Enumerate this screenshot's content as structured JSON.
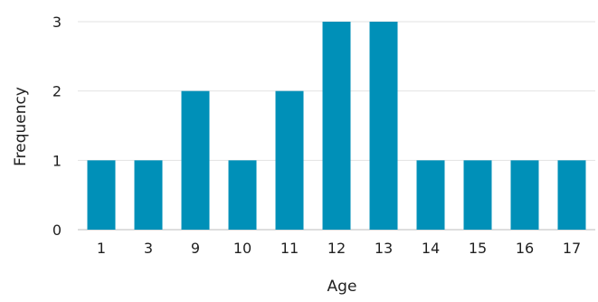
{
  "chart_data": {
    "type": "bar",
    "title": "",
    "xlabel": "Age",
    "ylabel": "Frequency",
    "categories": [
      "1",
      "3",
      "9",
      "10",
      "11",
      "12",
      "13",
      "14",
      "15",
      "16",
      "17"
    ],
    "values": [
      1,
      1,
      2,
      1,
      2,
      3,
      3,
      1,
      1,
      1,
      1
    ],
    "ylim": [
      0,
      3
    ],
    "yticks": [
      0,
      1,
      2,
      3
    ],
    "grid": true,
    "legend": "none",
    "colors": {
      "bar": "#0090b8",
      "grid": "#e2e2e2",
      "axis": "#bdbdbd"
    }
  }
}
